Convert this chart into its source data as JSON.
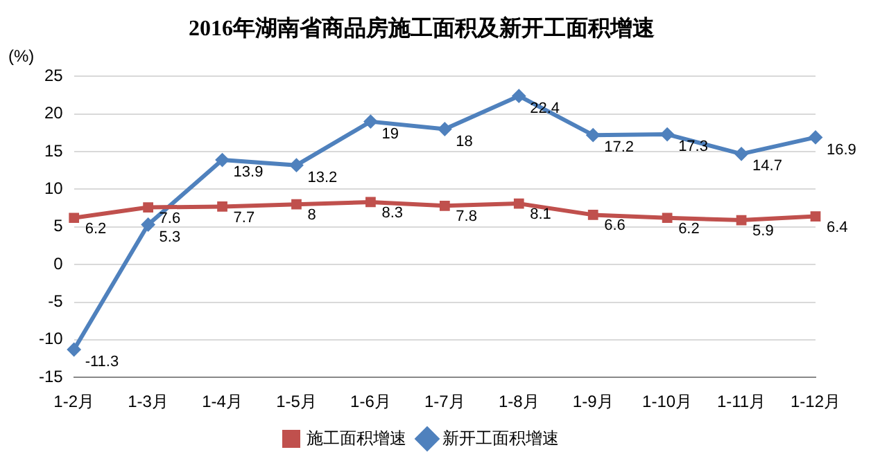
{
  "chart_data": {
    "type": "line",
    "title": "2016年湖南省商品房施工面积及新开工面积增速",
    "ylabel": "(%)",
    "categories": [
      "1-2月",
      "1-3月",
      "1-4月",
      "1-5月",
      "1-6月",
      "1-7月",
      "1-8月",
      "1-9月",
      "1-10月",
      "1-11月",
      "1-12月"
    ],
    "series": [
      {
        "name": "施工面积增速",
        "color": "#c0504d",
        "marker": "square",
        "values": [
          6.2,
          7.6,
          7.7,
          8,
          8.3,
          7.8,
          8.1,
          6.6,
          6.2,
          5.9,
          6.4
        ]
      },
      {
        "name": "新开工面积增速",
        "color": "#4f81bd",
        "marker": "diamond",
        "values": [
          -11.3,
          5.3,
          13.9,
          13.2,
          19,
          18,
          22.4,
          17.2,
          17.3,
          14.7,
          16.9
        ]
      }
    ],
    "ylim": [
      -15,
      25
    ],
    "yticks": [
      -15,
      -10,
      -5,
      0,
      5,
      10,
      15,
      20,
      25
    ],
    "grid": "y",
    "legend": "bottom",
    "data_labels": true,
    "line_style": "solid"
  }
}
